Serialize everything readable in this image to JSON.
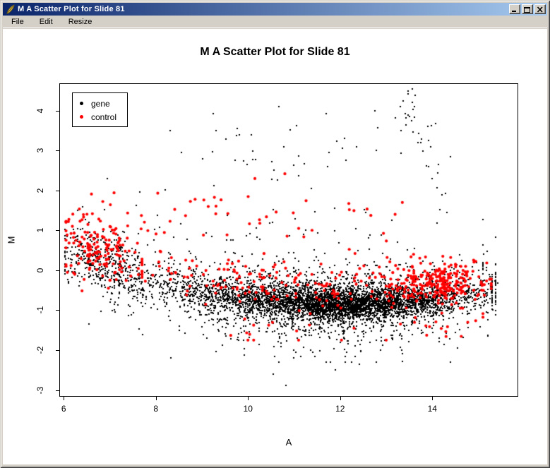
{
  "window": {
    "title": "M A Scatter Plot for Slide 81",
    "icon": "tk-feather",
    "menu": [
      "File",
      "Edit",
      "Resize"
    ],
    "controls": [
      {
        "name": "minimize"
      },
      {
        "name": "maximize"
      },
      {
        "name": "close"
      }
    ],
    "titlebar_gradient": [
      "#0a246a",
      "#a6caf0"
    ],
    "frame_color": "#d4d0c8"
  },
  "chart_data": {
    "type": "scatter",
    "title": "M A Scatter Plot for Slide 81",
    "xlabel": "A",
    "ylabel": "M",
    "xlim": [
      5.92,
      15.85
    ],
    "ylim": [
      -3.15,
      4.67
    ],
    "xticks": [
      6,
      8,
      10,
      12,
      14
    ],
    "yticks": [
      -3,
      -2,
      -1,
      0,
      1,
      2,
      3,
      4
    ],
    "grid": false,
    "legend": {
      "position": "top-left",
      "entries": [
        {
          "label": "gene",
          "color": "#000000"
        },
        {
          "label": "control",
          "color": "#ff0000"
        }
      ]
    },
    "seed": 81,
    "band_baseline": [
      [
        6.0,
        0.12
      ],
      [
        6.5,
        0.02
      ],
      [
        7.0,
        -0.12
      ],
      [
        7.5,
        -0.24
      ],
      [
        8.0,
        -0.36
      ],
      [
        9.0,
        -0.55
      ],
      [
        10.0,
        -0.7
      ],
      [
        11.0,
        -0.8
      ],
      [
        12.0,
        -0.85
      ],
      [
        13.0,
        -0.82
      ],
      [
        14.0,
        -0.74
      ],
      [
        15.0,
        -0.6
      ],
      [
        15.6,
        -0.48
      ]
    ],
    "series": [
      {
        "name": "gene",
        "color": "#000000",
        "marker": {
          "shape": "square",
          "size": 2
        },
        "clusters": [
          {
            "type": "band",
            "n": 3600,
            "mx": 12.15,
            "sdx": 1.4,
            "sdy": 0.2,
            "offset": 0,
            "clampX": [
              7.6,
              15.3
            ]
          },
          {
            "type": "band",
            "n": 1100,
            "mx": 11.9,
            "sdx": 1.85,
            "sdy": 0.42,
            "offset": 0,
            "clampX": [
              7.1,
              15.38
            ]
          },
          {
            "type": "band",
            "n": 380,
            "mx": 8.9,
            "sdx": 0.85,
            "sdy": 0.3,
            "offset": 0.02,
            "clampX": [
              7.2,
              10.6
            ]
          },
          {
            "type": "gauss",
            "n": 430,
            "mx": 6.85,
            "sdx": 0.5,
            "my": 0.15,
            "sdy": 0.4,
            "slope": -0.3,
            "clampX": [
              6.02,
              8.3
            ],
            "clampY": [
              -1.2,
              1.7
            ]
          },
          {
            "type": "above",
            "n": 240,
            "mx": 11.2,
            "sdx": 2.3,
            "off": 0.3,
            "sdy": 0.8,
            "maxY": 2.7,
            "clampX": [
              6.3,
              15.1
            ]
          },
          {
            "type": "uniform",
            "n": 42,
            "x0": 7.9,
            "x1": 14.6,
            "y0": 2.0,
            "y1": 4.05
          },
          {
            "type": "streak",
            "n": 24,
            "x0": 13.42,
            "y0": 4.35,
            "x1": 14.28,
            "y1": 1.65,
            "jx": 0.07,
            "jy": 0.15
          },
          {
            "type": "gauss",
            "n": 9,
            "mx": 13.55,
            "sdx": 0.13,
            "my": 4.1,
            "sdy": 0.22
          },
          {
            "type": "below",
            "n": 250,
            "mx": 11.7,
            "sdx": 1.9,
            "off": 0.25,
            "sdy": 0.6,
            "minY": -2.3,
            "clampX": [
              7.4,
              15.2
            ]
          },
          {
            "type": "points",
            "pts": [
              [
                10.82,
                -2.88
              ],
              [
                8.33,
                -2.2
              ],
              [
                12.42,
                -2.35
              ],
              [
                13.35,
                -2.28
              ],
              [
                9.92,
                -2.12
              ],
              [
                14.55,
                -1.95
              ],
              [
                6.55,
                -1.35
              ],
              [
                10.55,
                -2.6
              ],
              [
                11.9,
                -2.5
              ],
              [
                15.42,
                -0.32
              ],
              [
                15.3,
                -0.22
              ],
              [
                15.38,
                -0.48
              ],
              [
                10.67,
                4.1
              ],
              [
                11.05,
                3.62
              ],
              [
                9.3,
                3.5
              ],
              [
                8.55,
                2.95
              ],
              [
                12.1,
                3.3
              ],
              [
                14.4,
                2.85
              ],
              [
                6.95,
                2.3
              ],
              [
                12.75,
                4.0
              ],
              [
                13.2,
                3.82
              ],
              [
                10.1,
                2.78
              ]
            ]
          }
        ]
      },
      {
        "name": "control",
        "color": "#ff0000",
        "marker": {
          "shape": "circle",
          "size": 2.1
        },
        "clusters": [
          {
            "type": "gauss",
            "n": 150,
            "mx": 6.75,
            "sdx": 0.45,
            "my": 0.55,
            "sdy": 0.38,
            "slope": -0.35,
            "clampX": [
              6.05,
              8.2
            ],
            "clampY": [
              -0.55,
              1.8
            ]
          },
          {
            "type": "uniform",
            "n": 22,
            "x0": 6.4,
            "x1": 9.6,
            "y0": 0.85,
            "y1": 2.0
          },
          {
            "type": "band",
            "n": 205,
            "mx": 11.0,
            "sdx": 1.75,
            "sdy": 0.3,
            "offset": 0.42,
            "clampX": [
              7.7,
              13.6
            ]
          },
          {
            "type": "gauss",
            "n": 240,
            "mx": 14.15,
            "sdx": 0.52,
            "my": -0.28,
            "sdy": 0.26,
            "clampX": [
              12.85,
              15.28
            ],
            "clampY": [
              -0.95,
              0.45
            ]
          },
          {
            "type": "gauss",
            "n": 18,
            "mx": 14.25,
            "sdx": 0.45,
            "my": -1.35,
            "sdy": 0.22,
            "clampX": [
              13.2,
              15.1
            ],
            "clampY": [
              -1.8,
              -0.95
            ]
          },
          {
            "type": "uniform",
            "n": 24,
            "x0": 8.2,
            "x1": 13.4,
            "y0": 0.6,
            "y1": 1.9
          },
          {
            "type": "below",
            "n": 14,
            "mx": 10.8,
            "sdx": 1.2,
            "off": 0.45,
            "sdy": 0.4,
            "minY": -1.75,
            "clampX": [
              8.8,
              13.0
            ]
          },
          {
            "type": "points",
            "pts": [
              [
                10.8,
                2.42
              ],
              [
                12.2,
                1.52
              ],
              [
                13.35,
                1.7
              ],
              [
                6.08,
                -0.05
              ],
              [
                6.16,
                0.12
              ],
              [
                14.9,
                -0.5
              ],
              [
                10.15,
                2.3
              ],
              [
                11.1,
                1.05
              ]
            ]
          }
        ]
      }
    ]
  }
}
